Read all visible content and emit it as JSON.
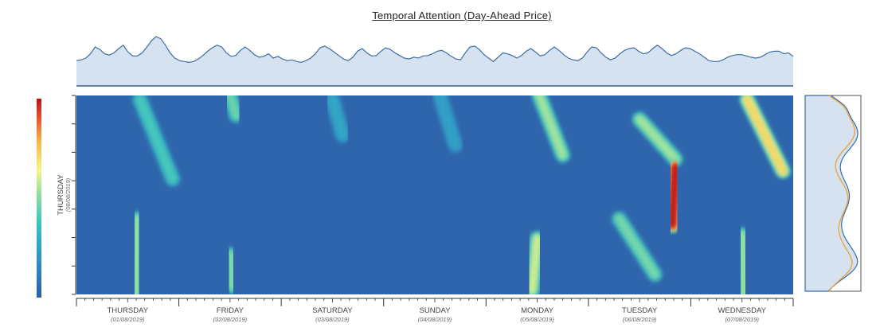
{
  "title": "Temporal Attention (Day-Ahead Price)",
  "chart_data": {
    "type": "heatmap",
    "title": "Temporal Attention (Day-Ahead Price)",
    "colorscale": [
      "#2b5fa8",
      "#2f8fc6",
      "#35c1c1",
      "#8fe0a0",
      "#f5f58a",
      "#f6b94a",
      "#e8552d",
      "#b8121c"
    ],
    "background_value": 0.0,
    "x_days": [
      {
        "name": "THURSDAY",
        "date": "(01/08/2019)"
      },
      {
        "name": "FRIDAY",
        "date": "(02/08/2019)"
      },
      {
        "name": "SATURDAY",
        "date": "(03/08/2019)"
      },
      {
        "name": "SUNDAY",
        "date": "(04/08/2019)"
      },
      {
        "name": "MONDAY",
        "date": "(05/08/2019)"
      },
      {
        "name": "TUESDAY",
        "date": "(06/08/2019)"
      },
      {
        "name": "WEDNESDAY",
        "date": "(07/08/2019)"
      }
    ],
    "y_day": {
      "name": "THURSDAY",
      "date": "(08/08/2019)"
    },
    "y_ticks": 7,
    "hotspots": [
      {
        "x0": 0.62,
        "x1": 0.94,
        "y0": 0.02,
        "y1": 0.42,
        "intensity": 0.22
      },
      {
        "x0": 0.6,
        "x1": 0.58,
        "y0": 0.62,
        "y1": 1.0,
        "intensity": 0.35
      },
      {
        "x0": 1.5,
        "x1": 1.56,
        "y0": 0.0,
        "y1": 0.1,
        "intensity": 0.28
      },
      {
        "x0": 1.5,
        "x1": 1.52,
        "y0": 0.8,
        "y1": 0.96,
        "intensity": 0.32
      },
      {
        "x0": 2.5,
        "x1": 2.6,
        "y0": 0.02,
        "y1": 0.2,
        "intensity": 0.1
      },
      {
        "x0": 3.55,
        "x1": 3.7,
        "y0": 0.0,
        "y1": 0.25,
        "intensity": 0.08
      },
      {
        "x0": 4.52,
        "x1": 4.75,
        "y0": 0.0,
        "y1": 0.3,
        "intensity": 0.38
      },
      {
        "x0": 4.5,
        "x1": 4.45,
        "y0": 0.72,
        "y1": 0.98,
        "intensity": 0.45
      },
      {
        "x0": 5.5,
        "x1": 5.85,
        "y0": 0.12,
        "y1": 0.32,
        "intensity": 0.38
      },
      {
        "x0": 5.85,
        "x1": 5.82,
        "y0": 0.36,
        "y1": 0.65,
        "intensity": 1.0
      },
      {
        "x0": 5.3,
        "x1": 5.65,
        "y0": 0.62,
        "y1": 0.9,
        "intensity": 0.3
      },
      {
        "x0": 6.55,
        "x1": 6.9,
        "y0": 0.02,
        "y1": 0.38,
        "intensity": 0.6
      },
      {
        "x0": 6.5,
        "x1": 6.52,
        "y0": 0.7,
        "y1": 1.0,
        "intensity": 0.35
      },
      {
        "x0": 6.97,
        "x1": 6.97,
        "y0": 0.42,
        "y1": 0.72,
        "intensity": 0.22
      }
    ],
    "top_profile": [
      0.44,
      0.46,
      0.5,
      0.6,
      0.76,
      0.7,
      0.6,
      0.57,
      0.62,
      0.72,
      0.8,
      0.64,
      0.55,
      0.55,
      0.62,
      0.75,
      0.9,
      1.0,
      0.95,
      0.8,
      0.62,
      0.5,
      0.44,
      0.42,
      0.4,
      0.42,
      0.48,
      0.56,
      0.66,
      0.74,
      0.8,
      0.76,
      0.62,
      0.54,
      0.56,
      0.68,
      0.76,
      0.68,
      0.58,
      0.52,
      0.54,
      0.6,
      0.5,
      0.54,
      0.48,
      0.44,
      0.46,
      0.42,
      0.4,
      0.44,
      0.5,
      0.6,
      0.74,
      0.78,
      0.72,
      0.64,
      0.56,
      0.48,
      0.44,
      0.52,
      0.66,
      0.72,
      0.62,
      0.55,
      0.56,
      0.66,
      0.74,
      0.7,
      0.62,
      0.56,
      0.5,
      0.48,
      0.52,
      0.5,
      0.55,
      0.56,
      0.6,
      0.66,
      0.68,
      0.62,
      0.54,
      0.48,
      0.46,
      0.62,
      0.76,
      0.78,
      0.7,
      0.58,
      0.5,
      0.42,
      0.52,
      0.62,
      0.6,
      0.56,
      0.5,
      0.56,
      0.66,
      0.72,
      0.64,
      0.55,
      0.58,
      0.68,
      0.76,
      0.68,
      0.58,
      0.5,
      0.46,
      0.44,
      0.5,
      0.64,
      0.76,
      0.74,
      0.62,
      0.52,
      0.46,
      0.5,
      0.6,
      0.68,
      0.72,
      0.74,
      0.66,
      0.6,
      0.62,
      0.72,
      0.8,
      0.72,
      0.62,
      0.56,
      0.6,
      0.68,
      0.74,
      0.72,
      0.66,
      0.6,
      0.52,
      0.44,
      0.42,
      0.42,
      0.46,
      0.52,
      0.56,
      0.58,
      0.58,
      0.55,
      0.52,
      0.5,
      0.52,
      0.58,
      0.64,
      0.66,
      0.66,
      0.6,
      0.62,
      0.54
    ]
  }
}
